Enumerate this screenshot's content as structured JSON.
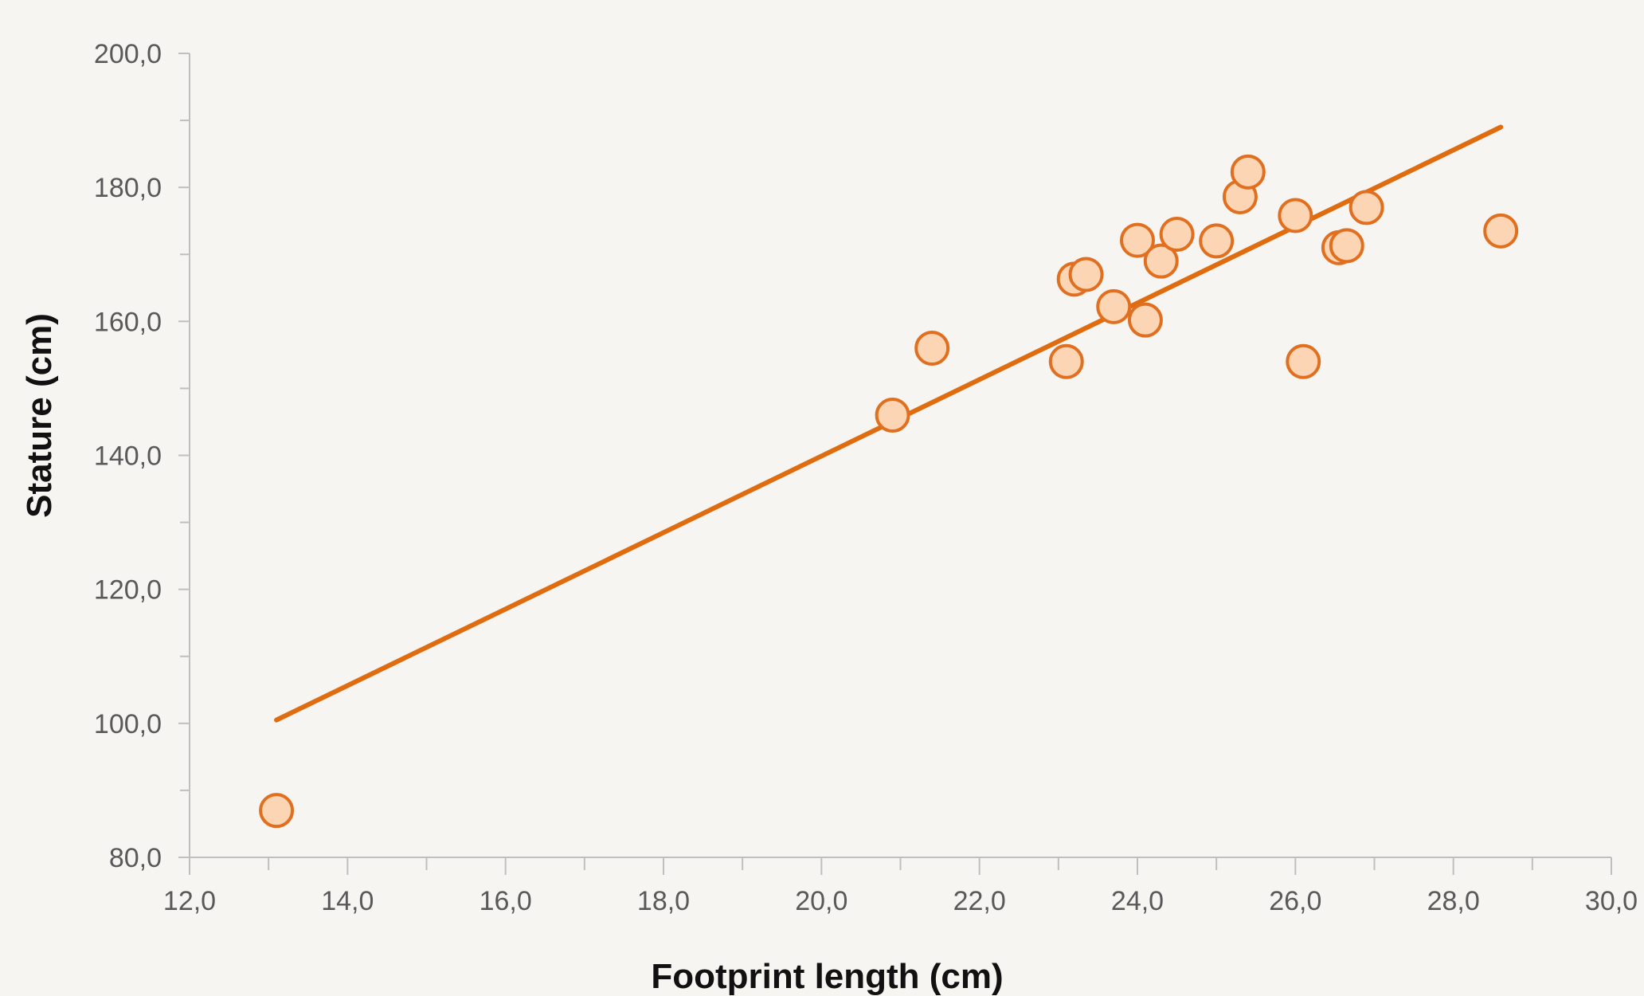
{
  "chart_data": {
    "type": "scatter",
    "title": "",
    "xlabel": "Footprint length (cm)",
    "ylabel": "Stature (cm)",
    "xlim": [
      12,
      30
    ],
    "ylim": [
      80,
      200
    ],
    "x_ticks": [
      12,
      14,
      16,
      18,
      20,
      22,
      24,
      26,
      28,
      30
    ],
    "y_ticks": [
      80,
      100,
      120,
      140,
      160,
      180,
      200
    ],
    "x_tick_labels": [
      "12,0",
      "14,0",
      "16,0",
      "18,0",
      "20,0",
      "22,0",
      "24,0",
      "26,0",
      "28,0",
      "30,0"
    ],
    "y_tick_labels": [
      "80,0",
      "100,0",
      "120,0",
      "140,0",
      "160,0",
      "180,0",
      "200,0"
    ],
    "grid": false,
    "legend": false,
    "series": [
      {
        "type": "scatter",
        "x": [
          13.1,
          20.9,
          21.4,
          23.1,
          23.2,
          23.35,
          23.7,
          24.0,
          24.1,
          24.3,
          24.5,
          25.0,
          25.3,
          25.4,
          26.0,
          26.1,
          26.55,
          26.65,
          26.9,
          28.6
        ],
        "y": [
          87.0,
          146.0,
          156.0,
          154.0,
          166.3,
          167.0,
          162.2,
          172.1,
          160.2,
          169.0,
          173.0,
          172.0,
          178.6,
          182.3,
          175.8,
          154.0,
          171.0,
          171.3,
          177.0,
          173.5
        ]
      },
      {
        "type": "line",
        "x": [
          13.1,
          28.6
        ],
        "y": [
          100.5,
          189.0
        ]
      }
    ],
    "colors": {
      "marker_fill": "#fcd5b4",
      "marker_stroke": "#e07020",
      "trendline": "#e06c10",
      "axis": "#bfbfbf",
      "tick_text": "#595959",
      "background": "#f7f5f2"
    }
  }
}
